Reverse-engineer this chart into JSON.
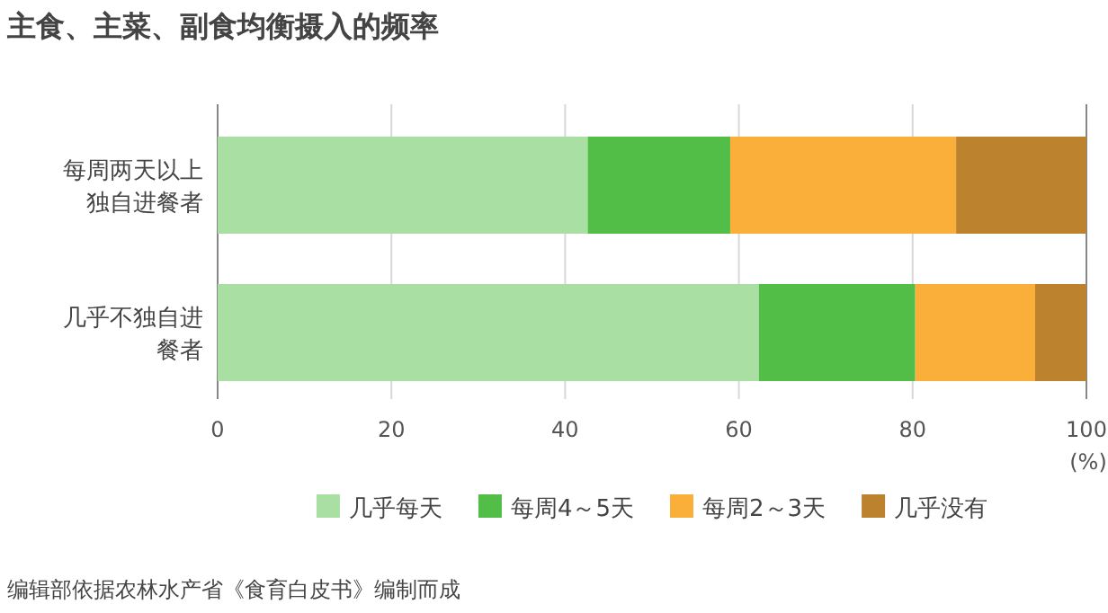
{
  "chart_data": {
    "type": "bar",
    "orientation": "horizontal",
    "stacked": true,
    "title": "主食、主菜、副食均衡摄入的频率",
    "xlabel": "(%)",
    "categories": [
      "每周两天以上独自进餐者",
      "几乎不独自进餐者"
    ],
    "series": [
      {
        "name": "几乎每天",
        "color": "#aadfa4",
        "values": [
          42.6,
          62.3
        ]
      },
      {
        "name": "每周4～5天",
        "color": "#52be47",
        "values": [
          16.4,
          18.0
        ]
      },
      {
        "name": "每周2～3天",
        "color": "#fbaf3b",
        "values": [
          26.0,
          13.8
        ]
      },
      {
        "name": "几乎没有",
        "color": "#bc822e",
        "values": [
          15.0,
          5.9
        ]
      }
    ],
    "xlim": [
      0,
      100
    ],
    "xticks": [
      0,
      20,
      40,
      60,
      80,
      100
    ],
    "grid": "x",
    "legend": "bottom",
    "annotations": [
      "编辑部依据农林水产省《食育白皮书》编制而成"
    ]
  }
}
